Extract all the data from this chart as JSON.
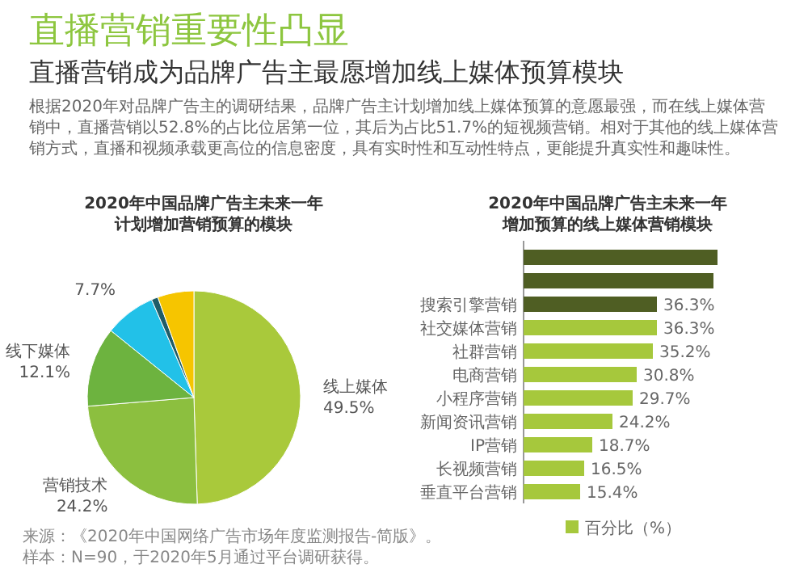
{
  "chart_data": [
    {
      "type": "pie",
      "title": "2020年中国品牌广告主未来一年计划增加营销预算的模块",
      "annotations": [
        "直播营销重要性凸显",
        "直播营销成为品牌广告主最愿增加线上媒体预算模块",
        "根据2020年对品牌广告主的调研结果，品牌广告主计划增加线上媒体预算的意愿最强，而在线上媒体营销中，直播营销以52.8%的占比位居第一位，其后为占比51.7%的短视频营销。相对于其他的线上媒体营销方式，直播和视频承载更高位的信息密度，具有实时性和互动性特点，更能提升真实性和趣味性。",
        "来源：《2020年中国网络广告市场年度监测报告-简版》。",
        "样本：N=90，于2020年5月通过平台调研获得。"
      ],
      "categories": [
        "线上媒体",
        "营销技术",
        "线下媒体",
        null,
        null,
        null
      ],
      "values": [
        49.5,
        24.2,
        12.1,
        7.7,
        1.0,
        5.5
      ],
      "value_labels": [
        "49.5%",
        "24.2%",
        "12.1%",
        "7.7%",
        null,
        null
      ],
      "colors": [
        "#a9c93b",
        "#8cbf3f",
        "#6db33f",
        "#22c1e8",
        "#1f5d68",
        "#f6c500"
      ]
    },
    {
      "type": "bar",
      "orientation": "horizontal",
      "title": "2020年中国品牌广告主未来一年增加预算的线上媒体营销模块",
      "categories": [
        null,
        null,
        "搜索引擎营销",
        "社交媒体营销",
        "社群营销",
        "电商营销",
        "小程序营销",
        "新闻资讯营销",
        "IP营销",
        "长视频营销",
        "垂直平台营销"
      ],
      "series": [
        {
          "name": "百分比（%）",
          "color": "#a6c83c",
          "colors": [
            "#4f5e23",
            "#4f5e23",
            "#4f5e23",
            "#a6c83c",
            "#a6c83c",
            "#a6c83c",
            "#a6c83c",
            "#a6c83c",
            "#a6c83c",
            "#a6c83c",
            "#a6c83c"
          ],
          "values": [
            52.8,
            51.7,
            36.3,
            36.3,
            35.2,
            30.8,
            29.7,
            24.2,
            18.7,
            16.5,
            15.4
          ],
          "value_labels": [
            null,
            null,
            "36.3%",
            "36.3%",
            "35.2%",
            "30.8%",
            "29.7%",
            "24.2%",
            "18.7%",
            "16.5%",
            "15.4%"
          ]
        }
      ],
      "legend": "bottom"
    }
  ]
}
